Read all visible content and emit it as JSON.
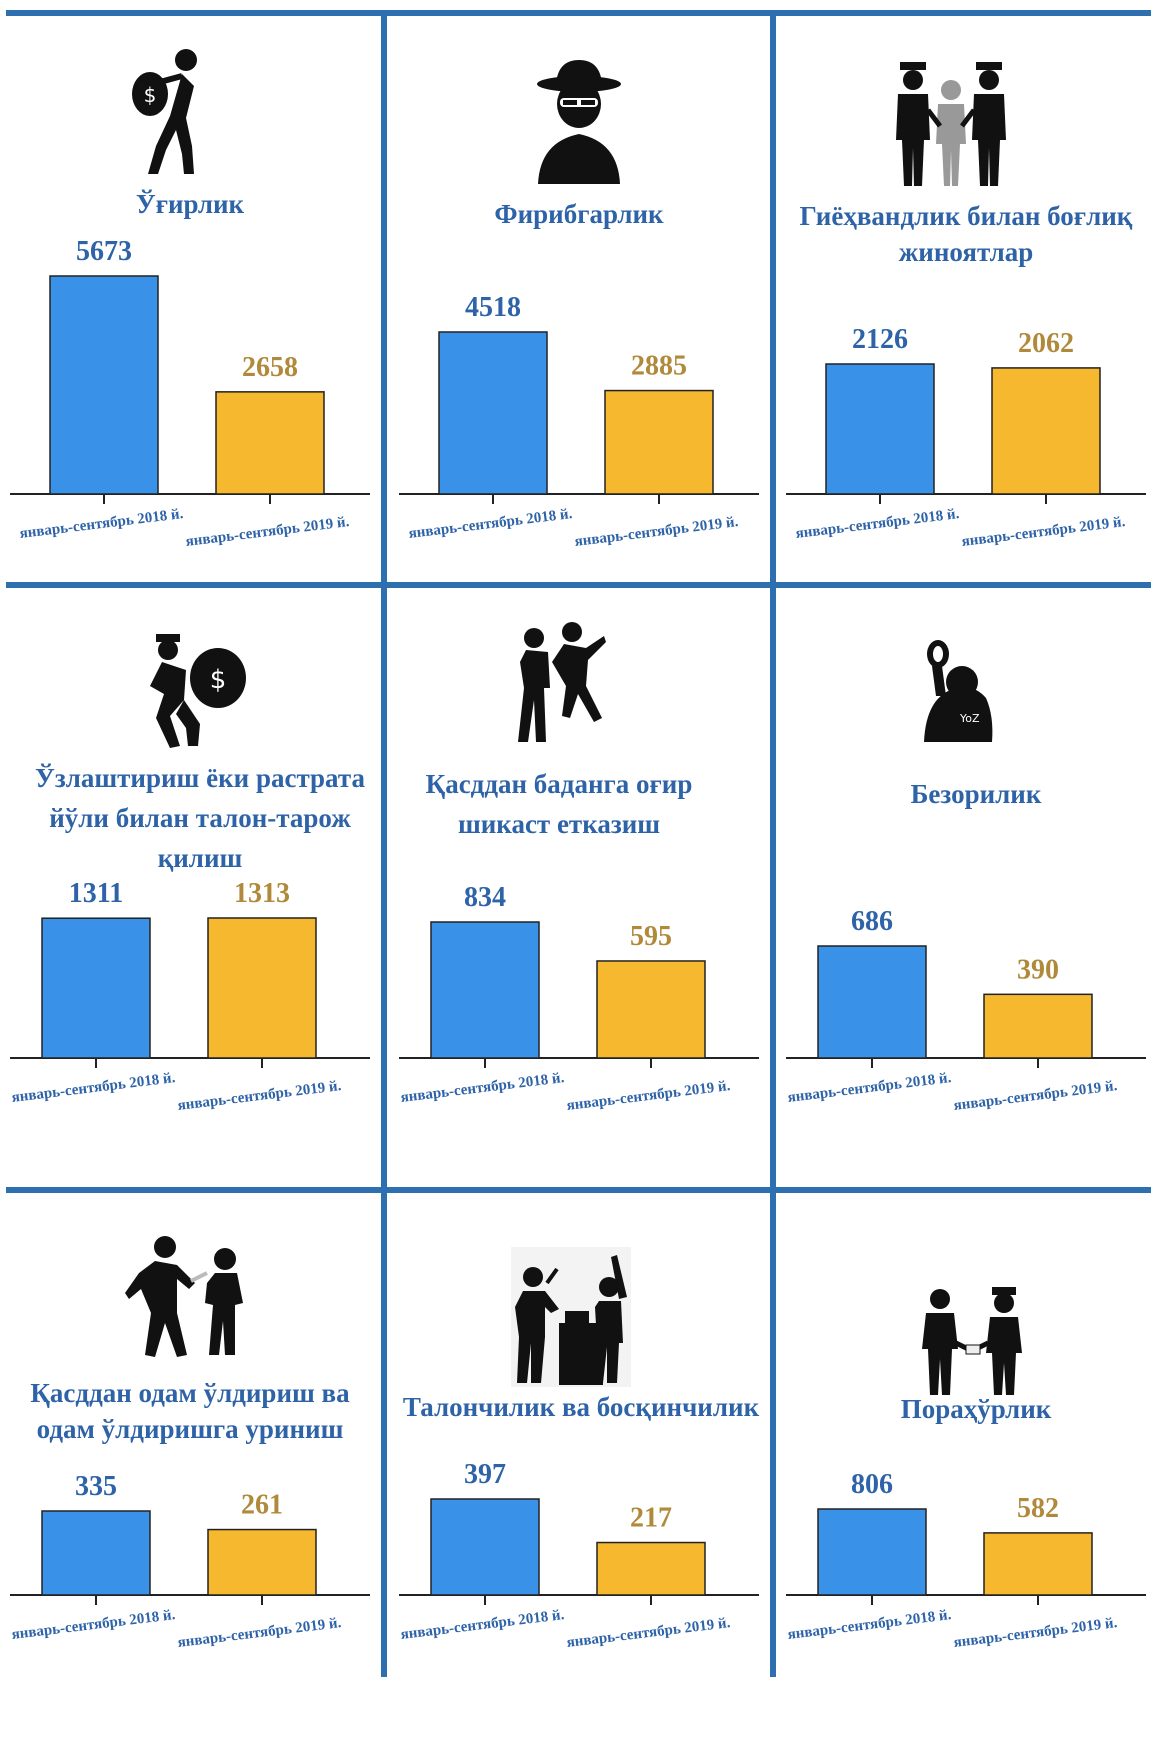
{
  "colors": {
    "blue": "#3a91e8",
    "orange": "#f5b82e",
    "frame": "#2e6fb0",
    "blue_text": "#2e63a8",
    "orange_text": "#b08a3a"
  },
  "chart_data": [
    {
      "type": "bar",
      "title": "Ўғирлик",
      "icon": "thief-with-money-bag-icon",
      "categories": [
        "январь-сентябрь 2018 й.",
        "январь-сентябрь 2019 й."
      ],
      "values": [
        5673,
        2658
      ]
    },
    {
      "type": "bar",
      "title": "Фирибгарлик",
      "icon": "masked-fraudster-icon",
      "categories": [
        "январь-сентябрь 2018 й.",
        "январь-сентябрь 2019 й."
      ],
      "values": [
        4518,
        2885
      ]
    },
    {
      "type": "bar",
      "title": "Гиёҳвандлик билан боғлиқ жиноятлар",
      "icon": "arrest-by-police-icon",
      "categories": [
        "январь-сентябрь 2018 й.",
        "январь-сентябрь 2019 й."
      ],
      "values": [
        2126,
        2062
      ]
    },
    {
      "type": "bar",
      "title": "Ўзлаштириш ёки растрата йўли билан талон-тарож қилиш",
      "icon": "embezzler-with-bag-icon",
      "categories": [
        "январь-сентябрь 2018 й.",
        "январь-сентябрь 2019 й."
      ],
      "values": [
        1311,
        1313
      ]
    },
    {
      "type": "bar",
      "title": "Қасддан баданга оғир шикаст етказиш",
      "icon": "fight-icon",
      "categories": [
        "январь-сентябрь 2018 й.",
        "январь-сентябрь 2019 й."
      ],
      "values": [
        834,
        595
      ]
    },
    {
      "type": "bar",
      "title": "Безорилик",
      "icon": "hooligan-icon",
      "categories": [
        "январь-сентябрь 2018 й.",
        "январь-сентябрь 2019 й."
      ],
      "values": [
        686,
        390
      ]
    },
    {
      "type": "bar",
      "title": "Қасддан одам ўлдириш ва одам ўлдиришга уриниш",
      "icon": "knife-attack-icon",
      "categories": [
        "январь-сентябрь 2018 й.",
        "январь-сентябрь 2019 й."
      ],
      "values": [
        335,
        261
      ]
    },
    {
      "type": "bar",
      "title": "Талончилик ва босқинчилик",
      "icon": "robbery-icon",
      "categories": [
        "январь-сентябрь 2018 й.",
        "январь-сентябрь 2019 й."
      ],
      "values": [
        397,
        217
      ]
    },
    {
      "type": "bar",
      "title": "Пораҳўрлик",
      "icon": "bribery-icon",
      "categories": [
        "январь-сентябрь 2018 й.",
        "январь-сентябрь 2019 й."
      ],
      "values": [
        806,
        582
      ]
    }
  ]
}
